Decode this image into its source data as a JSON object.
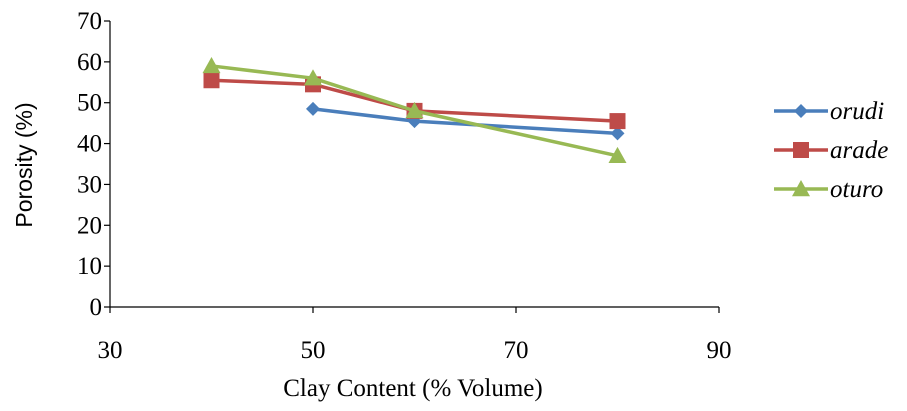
{
  "chart_data": {
    "type": "line",
    "title": "",
    "xlabel": "Clay Content (% Volume)",
    "ylabel": "Porosity (%)",
    "xlim": [
      30,
      90
    ],
    "ylim": [
      0,
      70
    ],
    "xticks": [
      30,
      50,
      70,
      90
    ],
    "yticks": [
      0,
      10,
      20,
      30,
      40,
      50,
      60,
      70
    ],
    "grid": false,
    "legend_position": "right",
    "series": [
      {
        "name": "orudi",
        "color": "#4a7ebb",
        "marker": "diamond",
        "points": [
          [
            50,
            48.5
          ],
          [
            60,
            45.5
          ],
          [
            80,
            42.5
          ]
        ]
      },
      {
        "name": "arade",
        "color": "#be4b48",
        "marker": "square",
        "points": [
          [
            40,
            55.5
          ],
          [
            50,
            54.5
          ],
          [
            60,
            48
          ],
          [
            80,
            45.5
          ]
        ]
      },
      {
        "name": "oturo",
        "color": "#98b954",
        "marker": "triangle",
        "points": [
          [
            40,
            59
          ],
          [
            50,
            56
          ],
          [
            60,
            48
          ],
          [
            80,
            37
          ]
        ]
      }
    ]
  }
}
